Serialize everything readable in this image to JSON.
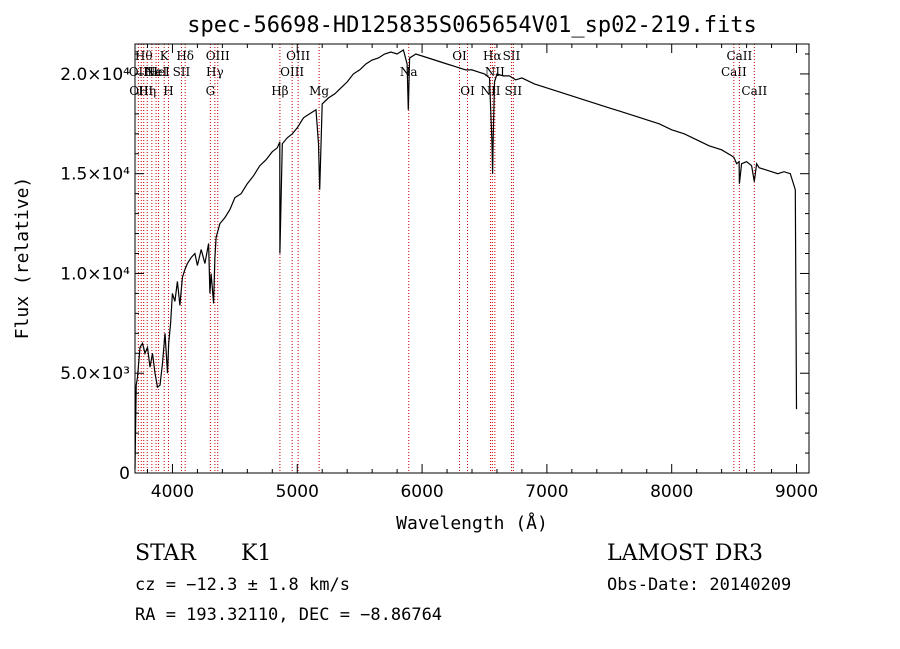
{
  "chart_data": {
    "type": "line",
    "title": "spec-56698-HD125835S065654V01_sp02-219.fits",
    "xlabel": "Wavelength (Å)",
    "ylabel": "Flux (relative)",
    "xlim": [
      3700,
      9100
    ],
    "ylim": [
      0,
      21500
    ],
    "x_ticks": [
      {
        "value": 4000,
        "label": "4000"
      },
      {
        "value": 5000,
        "label": "5000"
      },
      {
        "value": 6000,
        "label": "6000"
      },
      {
        "value": 7000,
        "label": "7000"
      },
      {
        "value": 8000,
        "label": "8000"
      },
      {
        "value": 9000,
        "label": "9000"
      }
    ],
    "y_ticks": [
      {
        "value": 0,
        "label": "0"
      },
      {
        "value": 5000,
        "label": "5.0×10³"
      },
      {
        "value": 10000,
        "label": "1.0×10⁴"
      },
      {
        "value": 15000,
        "label": "1.5×10⁴"
      },
      {
        "value": 20000,
        "label": "2.0×10⁴"
      }
    ],
    "series": [
      {
        "x": [
          3700,
          3710,
          3720,
          3740,
          3760,
          3780,
          3800,
          3820,
          3840,
          3860,
          3880,
          3900,
          3920,
          3940,
          3960,
          3970,
          3985,
          4000,
          4020,
          4040,
          4060,
          4080,
          4100,
          4120,
          4150,
          4180,
          4200,
          4230,
          4260,
          4290,
          4300,
          4310,
          4330,
          4340,
          4350,
          4380,
          4420,
          4460,
          4500,
          4550,
          4600,
          4650,
          4700,
          4750,
          4800,
          4840,
          4860,
          4861,
          4880,
          4920,
          4960,
          5000,
          5050,
          5100,
          5150,
          5170,
          5180,
          5200,
          5250,
          5300,
          5350,
          5400,
          5450,
          5500,
          5550,
          5600,
          5650,
          5700,
          5750,
          5800,
          5850,
          5880,
          5890,
          5900,
          5950,
          6000,
          6050,
          6100,
          6150,
          6200,
          6250,
          6300,
          6350,
          6400,
          6450,
          6500,
          6540,
          6560,
          6565,
          6570,
          6580,
          6600,
          6650,
          6700,
          6750,
          6800,
          6900,
          7000,
          7100,
          7200,
          7300,
          7400,
          7500,
          7600,
          7700,
          7800,
          7900,
          8000,
          8100,
          8200,
          8300,
          8400,
          8480,
          8500,
          8520,
          8540,
          8542,
          8560,
          8600,
          8640,
          8662,
          8680,
          8700,
          8750,
          8800,
          8850,
          8900,
          8950,
          8990,
          9000
        ],
        "y": [
          200,
          4400,
          4800,
          6300,
          6500,
          6000,
          6300,
          5300,
          6000,
          5000,
          4300,
          4400,
          5500,
          7000,
          5000,
          6500,
          7500,
          9000,
          8600,
          9600,
          8400,
          9800,
          10200,
          10500,
          10800,
          11000,
          10400,
          11200,
          10500,
          11500,
          9000,
          10000,
          8500,
          10800,
          11800,
          12500,
          12800,
          13200,
          13800,
          14000,
          14500,
          14900,
          15400,
          15700,
          16100,
          16300,
          16600,
          11000,
          16500,
          16800,
          17000,
          17300,
          17800,
          18000,
          18200,
          16500,
          14200,
          18500,
          18800,
          19000,
          19300,
          19600,
          20000,
          20200,
          20500,
          20700,
          20800,
          21000,
          21100,
          21000,
          21200,
          20500,
          18200,
          20800,
          21000,
          20900,
          20800,
          20700,
          20600,
          20500,
          20400,
          20300,
          20200,
          20200,
          20100,
          20000,
          19800,
          16500,
          15000,
          16800,
          19600,
          20000,
          19900,
          19900,
          19700,
          19800,
          19500,
          19300,
          19100,
          18900,
          18700,
          18500,
          18300,
          18100,
          17900,
          17700,
          17500,
          17200,
          17000,
          16700,
          16400,
          16200,
          15900,
          15800,
          15500,
          15600,
          14500,
          15500,
          15600,
          15400,
          14600,
          15500,
          15300,
          15200,
          15100,
          15000,
          15100,
          15000,
          14200,
          3200
        ]
      }
    ],
    "line_markers": [
      {
        "x": 3727,
        "label": "OII",
        "row": 1
      },
      {
        "x": 3750,
        "label": "OIII",
        "row": 2
      },
      {
        "x": 3770,
        "label": "Hθ",
        "row": 0
      },
      {
        "x": 3798,
        "label": "Hη",
        "row": 2
      },
      {
        "x": 3835,
        "label": "Hε",
        "row": 1
      },
      {
        "x": 3869,
        "label": "NeI",
        "row": 1
      },
      {
        "x": 3889,
        "label": "HeI",
        "row": 1
      },
      {
        "x": 3934,
        "label": "K",
        "row": 0
      },
      {
        "x": 3968,
        "label": "H",
        "row": 2
      },
      {
        "x": 4072,
        "label": "SII",
        "row": 1
      },
      {
        "x": 4102,
        "label": "Hδ",
        "row": 0
      },
      {
        "x": 4304,
        "label": "G",
        "row": 2
      },
      {
        "x": 4340,
        "label": "Hγ",
        "row": 1
      },
      {
        "x": 4363,
        "label": "OIII",
        "row": 0
      },
      {
        "x": 4861,
        "label": "Hβ",
        "row": 2
      },
      {
        "x": 4959,
        "label": "OIII",
        "row": 1
      },
      {
        "x": 5007,
        "label": "OIII",
        "row": 0
      },
      {
        "x": 5175,
        "label": "Mg",
        "row": 2
      },
      {
        "x": 5893,
        "label": "Na",
        "row": 1
      },
      {
        "x": 6300,
        "label": "OI",
        "row": 0
      },
      {
        "x": 6364,
        "label": "OI",
        "row": 2
      },
      {
        "x": 6548,
        "label": "NII",
        "row": 2
      },
      {
        "x": 6563,
        "label": "Hα",
        "row": 0
      },
      {
        "x": 6583,
        "label": "NII",
        "row": 1
      },
      {
        "x": 6716,
        "label": "SII",
        "row": 0
      },
      {
        "x": 6731,
        "label": "SII",
        "row": 2
      },
      {
        "x": 8498,
        "label": "CaII",
        "row": 1
      },
      {
        "x": 8542,
        "label": "CaII",
        "row": 0
      },
      {
        "x": 8662,
        "label": "CaII",
        "row": 2
      }
    ]
  },
  "info": {
    "class": "STAR",
    "subclass": "K1",
    "survey": "LAMOST DR3",
    "cz": "cz = −12.3 ± 1.8 km/s",
    "obs_date": "Obs-Date: 20140209",
    "coords": "RA = 193.32110, DEC =  −8.86764"
  },
  "colors": {
    "marker_line": "#cc0000",
    "spectrum": "#000000"
  }
}
